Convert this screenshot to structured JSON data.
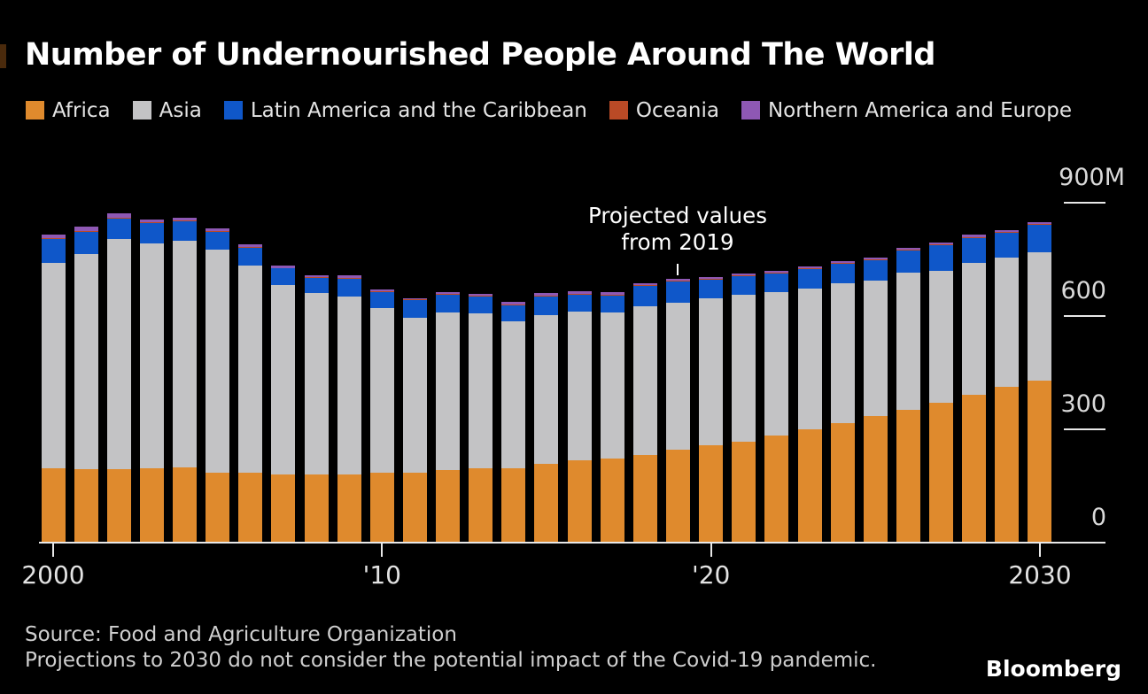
{
  "title": "Number of Undernourished People Around The World",
  "legend": [
    {
      "label": "Africa",
      "color": "#DF8A2D"
    },
    {
      "label": "Asia",
      "color": "#C3C3C5"
    },
    {
      "label": "Latin America and the Caribbean",
      "color": "#0F57C9"
    },
    {
      "label": "Oceania",
      "color": "#BA4A26"
    },
    {
      "label": "Northern America and Europe",
      "color": "#8E58B4"
    }
  ],
  "annotation": {
    "line1": "Projected values",
    "line2": "from 2019"
  },
  "y_axis": {
    "ticks": [
      "900M",
      "600",
      "300",
      "0"
    ],
    "values": [
      900,
      600,
      300,
      0
    ]
  },
  "x_axis": {
    "ticks": [
      {
        "label": "2000",
        "year": 2000
      },
      {
        "label": "'10",
        "year": 2010
      },
      {
        "label": "'20",
        "year": 2020
      },
      {
        "label": "2030",
        "year": 2030
      }
    ]
  },
  "footer": {
    "source": "Source: Food and Agriculture Organization",
    "note": "Projections to 2030 do not consider the potential impact of the Covid-19 pandemic.",
    "brand": "Bloomberg"
  },
  "chart_data": {
    "type": "bar",
    "stacked": true,
    "unit": "millions of people",
    "title": "Number of Undernourished People Around The World",
    "ylim": [
      0,
      900
    ],
    "grid": false,
    "legend_position": "top",
    "projected_from": 2019,
    "categories": [
      2000,
      2001,
      2002,
      2003,
      2004,
      2005,
      2006,
      2007,
      2008,
      2009,
      2010,
      2011,
      2012,
      2013,
      2014,
      2015,
      2016,
      2017,
      2018,
      2019,
      2020,
      2021,
      2022,
      2023,
      2024,
      2025,
      2026,
      2027,
      2028,
      2029,
      2030
    ],
    "series": [
      {
        "name": "Africa",
        "color": "#DF8A2D",
        "values": [
          194,
          192,
          192,
          195,
          197,
          183,
          182,
          179,
          178,
          179,
          182,
          182,
          190,
          194,
          194,
          206,
          215,
          221,
          230,
          244,
          255,
          265,
          281,
          297,
          314,
          333,
          349,
          368,
          388,
          410,
          427
        ]
      },
      {
        "name": "Asia",
        "color": "#C3C3C5",
        "values": [
          545,
          570,
          609,
          595,
          599,
          591,
          549,
          501,
          480,
          470,
          437,
          412,
          418,
          411,
          389,
          394,
          395,
          387,
          393,
          389,
          389,
          390,
          381,
          373,
          370,
          359,
          363,
          349,
          351,
          343,
          339
        ]
      },
      {
        "name": "Latin America and the Caribbean",
        "color": "#0F57C9",
        "values": [
          62,
          59,
          55,
          53,
          52,
          46,
          47,
          43,
          40,
          47,
          42,
          45,
          45,
          44,
          43,
          49,
          45,
          44,
          54,
          55,
          50,
          47,
          49,
          52,
          51,
          53,
          58,
          67,
          64,
          64,
          73
        ]
      },
      {
        "name": "Oceania",
        "color": "#BA4A26",
        "values": [
          2.3,
          2.3,
          2.3,
          2.3,
          2.3,
          2.3,
          2.3,
          2.3,
          2.3,
          2.3,
          2.4,
          2.4,
          2.4,
          2.4,
          2.4,
          2.4,
          2.4,
          2.4,
          2.4,
          2.4,
          2.5,
          2.5,
          2.5,
          2.6,
          2.6,
          2.7,
          2.7,
          2.8,
          2.9,
          2.9,
          3.0
        ]
      },
      {
        "name": "Northern America and Europe",
        "color": "#8E58B4",
        "values": [
          11,
          10,
          12,
          8,
          7,
          8,
          6.7,
          5.7,
          5.7,
          6.7,
          4.6,
          3.6,
          4.6,
          4.6,
          6,
          7,
          5,
          6,
          5,
          5,
          4.5,
          5.5,
          4.5,
          5.4,
          6.4,
          5.3,
          6.3,
          5.2,
          8.1,
          4.1,
          5
        ]
      }
    ]
  }
}
